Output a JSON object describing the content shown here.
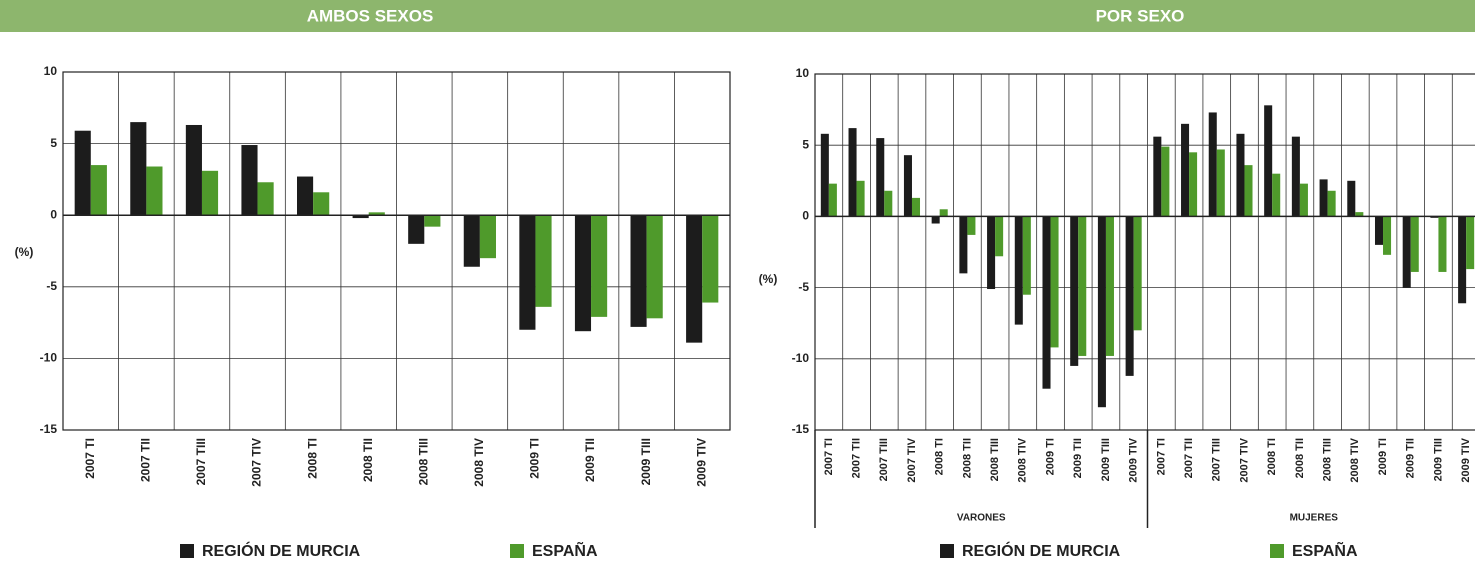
{
  "chart_data": [
    {
      "type": "bar",
      "title": "AMBOS SEXOS",
      "y_label": "(%)",
      "categories": [
        "2007 TI",
        "2007 TII",
        "2007 TIII",
        "2007 TIV",
        "2008 TI",
        "2008 TII",
        "2008 TIII",
        "2008 TIV",
        "2009 TI",
        "2009 TII",
        "2009 TIII",
        "2009 TIV"
      ],
      "series": [
        {
          "name": "REGIÓN DE MURCIA",
          "color": "#1c1c1c",
          "values": [
            5.9,
            6.5,
            6.3,
            4.9,
            2.7,
            -0.2,
            -2.0,
            -3.6,
            -8.0,
            -8.1,
            -7.8,
            -8.9
          ]
        },
        {
          "name": "ESPAÑA",
          "color": "#4f9a2b",
          "values": [
            3.5,
            3.4,
            3.1,
            2.3,
            1.6,
            0.2,
            -0.8,
            -3.0,
            -6.4,
            -7.1,
            -7.2,
            -6.1
          ]
        }
      ],
      "ylim": [
        -15,
        10
      ],
      "yticks": [
        -15,
        -10,
        -5,
        0,
        5,
        10
      ],
      "grid": true,
      "legend": "bottom"
    },
    {
      "type": "bar",
      "title": "POR SEXO",
      "y_label": "(%)",
      "categories": [
        "2007 TI",
        "2007 TII",
        "2007 TIII",
        "2007 TIV",
        "2008 TI",
        "2008 TII",
        "2008 TIII",
        "2008 TIV",
        "2009 TI",
        "2009 TII",
        "2009 TIII",
        "2009 TIV",
        "2007 TI",
        "2007 TII",
        "2007 TIII",
        "2007 TIV",
        "2008 TI",
        "2008 TII",
        "2008 TIII",
        "2008 TIV",
        "2009 TI",
        "2009 TII",
        "2009 TIII",
        "2009 TIV"
      ],
      "groups": [
        "VARONES",
        "MUJERES"
      ],
      "series": [
        {
          "name": "REGIÓN DE MURCIA",
          "color": "#1c1c1c",
          "values": [
            5.8,
            6.2,
            5.5,
            4.3,
            -0.5,
            -4.0,
            -5.1,
            -7.6,
            -12.1,
            -10.5,
            -13.4,
            -11.2,
            5.6,
            6.5,
            7.3,
            5.8,
            7.8,
            5.6,
            2.6,
            2.5,
            -2.0,
            -5.0,
            -0.1,
            -6.1
          ]
        },
        {
          "name": "ESPAÑA",
          "color": "#4f9a2b",
          "values": [
            2.3,
            2.5,
            1.8,
            1.3,
            0.5,
            -1.3,
            -2.8,
            -5.5,
            -9.2,
            -9.8,
            -9.8,
            -8.0,
            4.9,
            4.5,
            4.7,
            3.6,
            3.0,
            2.3,
            1.8,
            0.3,
            -2.7,
            -3.9,
            -3.9,
            -3.7
          ]
        }
      ],
      "ylim": [
        -15,
        10
      ],
      "yticks": [
        -15,
        -10,
        -5,
        0,
        5,
        10
      ],
      "grid": true,
      "legend": "bottom"
    }
  ]
}
